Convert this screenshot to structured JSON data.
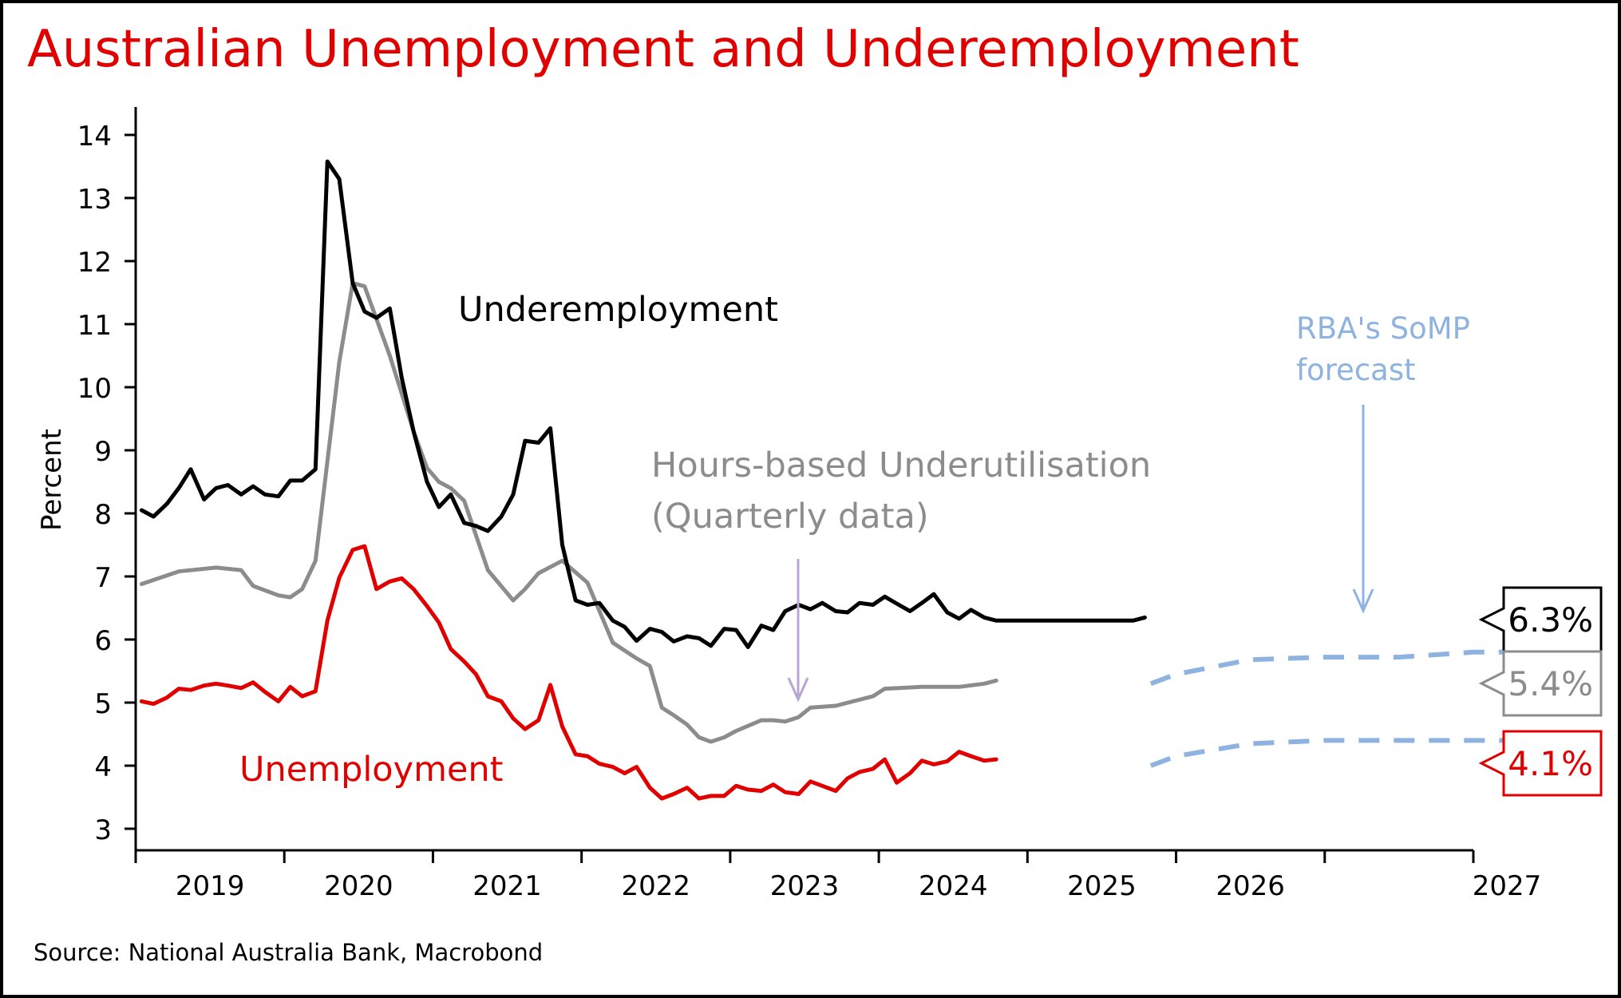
{
  "title": "Australian Unemployment and Underemployment",
  "source": "Source: National Australia Bank, Macrobond",
  "colors": {
    "title": "#e00000",
    "underemployment": "#000000",
    "underutilisation": "#8c8c8c",
    "unemployment": "#e00000",
    "forecast": "#8fb3e0"
  },
  "annotations": {
    "underemployment": "Underemployment",
    "underutilisation_line1": "Hours-based Underutilisation",
    "underutilisation_line2": "(Quarterly data)",
    "unemployment": "Unemployment",
    "forecast_line1": "RBA's SoMP",
    "forecast_line2": "forecast"
  },
  "chart_data": {
    "type": "line",
    "title": "Australian Unemployment and Underemployment",
    "ylabel": "Percent",
    "xlabel": "",
    "ylim": [
      3,
      14
    ],
    "xlim": [
      2018.0,
      2027.0
    ],
    "x_ticks": [
      "2019",
      "2020",
      "2021",
      "2022",
      "2023",
      "2024",
      "2025",
      "2026",
      "2027"
    ],
    "y_ticks": [
      3,
      4,
      5,
      6,
      7,
      8,
      9,
      10,
      11,
      12,
      13,
      14
    ],
    "grid": false,
    "series": [
      {
        "name": "Underemployment",
        "color": "#000000",
        "x": [
          2018.04,
          2018.12,
          2018.21,
          2018.29,
          2018.37,
          2018.46,
          2018.54,
          2018.62,
          2018.71,
          2018.79,
          2018.87,
          2018.96,
          2019.04,
          2019.12,
          2019.21,
          2019.29,
          2019.37,
          2019.46,
          2019.54,
          2019.62,
          2019.71,
          2019.79,
          2019.87,
          2019.96,
          2020.04,
          2020.12,
          2020.21,
          2020.29,
          2020.37,
          2020.46,
          2020.54,
          2020.62,
          2020.71,
          2020.79,
          2020.87,
          2020.96,
          2021.04,
          2021.12,
          2021.21,
          2021.29,
          2021.37,
          2021.46,
          2021.54,
          2021.62,
          2021.71,
          2021.79,
          2021.87,
          2021.96,
          2022.04,
          2022.12,
          2022.21,
          2022.29,
          2022.37,
          2022.46,
          2022.54,
          2022.62,
          2022.71,
          2022.79,
          2022.87,
          2022.96,
          2023.04,
          2023.12,
          2023.21,
          2023.29,
          2023.37,
          2023.46,
          2023.54,
          2023.62,
          2023.71,
          2023.79,
          2023.87,
          2023.96,
          2024.04,
          2024.12,
          2024.21,
          2024.29,
          2024.37,
          2024.46,
          2024.54,
          2024.62,
          2024.71,
          2024.79
        ],
        "values": [
          8.05,
          7.95,
          8.15,
          8.4,
          8.7,
          8.22,
          8.4,
          8.45,
          8.3,
          8.43,
          8.3,
          8.27,
          8.52,
          8.52,
          8.7,
          13.58,
          13.3,
          11.65,
          11.2,
          11.1,
          11.25,
          10.15,
          9.3,
          8.5,
          8.1,
          8.3,
          7.85,
          7.8,
          7.72,
          7.95,
          8.3,
          9.15,
          9.12,
          9.35,
          7.5,
          6.62,
          6.55,
          6.58,
          6.3,
          6.2,
          5.98,
          6.17,
          6.12,
          5.97,
          6.05,
          6.02,
          5.9,
          6.17,
          6.15,
          5.88,
          6.22,
          6.15,
          6.45,
          6.55,
          6.48,
          6.58,
          6.45,
          6.43,
          6.58,
          6.55,
          6.68,
          6.57,
          6.45,
          6.58,
          6.72,
          6.43,
          6.33,
          6.47,
          6.35,
          6.3,
          6.3,
          6.3,
          6.3,
          6.3,
          6.3,
          6.3,
          6.3,
          6.3,
          6.3,
          6.3,
          6.3,
          6.35
        ]
      },
      {
        "name": "Hours-based Underutilisation (Quarterly data)",
        "color": "#8c8c8c",
        "x": [
          2018.04,
          2018.29,
          2018.54,
          2018.71,
          2018.79,
          2018.96,
          2019.04,
          2019.12,
          2019.21,
          2019.37,
          2019.46,
          2019.54,
          2019.71,
          2019.87,
          2019.96,
          2020.04,
          2020.12,
          2020.21,
          2020.37,
          2020.54,
          2020.62,
          2020.71,
          2020.87,
          2021.04,
          2021.21,
          2021.37,
          2021.46,
          2021.54,
          2021.62,
          2021.71,
          2021.79,
          2021.87,
          2021.96,
          2022.04,
          2022.21,
          2022.29,
          2022.37,
          2022.46,
          2022.54,
          2022.71,
          2022.96,
          2023.04,
          2023.29,
          2023.54,
          2023.71,
          2023.79
        ],
        "values": [
          6.88,
          7.08,
          7.14,
          7.1,
          6.85,
          6.7,
          6.67,
          6.8,
          7.25,
          10.4,
          11.65,
          11.6,
          10.5,
          9.3,
          8.72,
          8.5,
          8.4,
          8.2,
          7.1,
          6.62,
          6.8,
          7.05,
          7.25,
          6.9,
          5.95,
          5.7,
          5.58,
          4.92,
          4.8,
          4.65,
          4.45,
          4.38,
          4.45,
          4.55,
          4.72,
          4.72,
          4.7,
          4.77,
          4.92,
          4.95,
          5.1,
          5.22,
          5.25,
          5.25,
          5.3,
          5.35
        ]
      },
      {
        "name": "Unemployment",
        "color": "#e00000",
        "x": [
          2018.04,
          2018.12,
          2018.21,
          2018.29,
          2018.37,
          2018.46,
          2018.54,
          2018.62,
          2018.71,
          2018.79,
          2018.87,
          2018.96,
          2019.04,
          2019.12,
          2019.21,
          2019.29,
          2019.37,
          2019.46,
          2019.54,
          2019.62,
          2019.71,
          2019.79,
          2019.87,
          2019.96,
          2020.04,
          2020.12,
          2020.21,
          2020.29,
          2020.37,
          2020.46,
          2020.54,
          2020.62,
          2020.71,
          2020.79,
          2020.87,
          2020.96,
          2021.04,
          2021.12,
          2021.21,
          2021.29,
          2021.37,
          2021.46,
          2021.54,
          2021.62,
          2021.71,
          2021.79,
          2021.87,
          2021.96,
          2022.04,
          2022.12,
          2022.21,
          2022.29,
          2022.37,
          2022.46,
          2022.54,
          2022.62,
          2022.71,
          2022.79,
          2022.87,
          2022.96,
          2023.04,
          2023.12,
          2023.21,
          2023.29,
          2023.37,
          2023.46,
          2023.54,
          2023.62,
          2023.71,
          2023.79
        ],
        "values": [
          5.02,
          4.98,
          5.08,
          5.22,
          5.2,
          5.27,
          5.3,
          5.27,
          5.23,
          5.32,
          5.17,
          5.02,
          5.25,
          5.1,
          5.18,
          6.3,
          6.98,
          7.42,
          7.48,
          6.8,
          6.92,
          6.97,
          6.8,
          6.53,
          6.27,
          5.85,
          5.65,
          5.45,
          5.1,
          5.02,
          4.75,
          4.58,
          4.72,
          5.28,
          4.62,
          4.18,
          4.15,
          4.03,
          3.98,
          3.88,
          3.98,
          3.65,
          3.48,
          3.55,
          3.65,
          3.48,
          3.52,
          3.52,
          3.68,
          3.62,
          3.6,
          3.7,
          3.58,
          3.55,
          3.75,
          3.68,
          3.6,
          3.8,
          3.9,
          3.95,
          4.1,
          3.73,
          3.88,
          4.08,
          4.02,
          4.07,
          4.22,
          4.15,
          4.08,
          4.1
        ]
      }
    ],
    "forecasts": [
      {
        "x": [
          2024.83,
          2025.0,
          2025.5,
          2026.0,
          2026.5,
          2027.0,
          2027.25
        ],
        "values": [
          5.3,
          5.45,
          5.68,
          5.72,
          5.72,
          5.8,
          5.8
        ]
      },
      {
        "x": [
          2024.83,
          2025.0,
          2025.5,
          2026.0,
          2026.5,
          2027.0,
          2027.25
        ],
        "values": [
          4.0,
          4.15,
          4.35,
          4.4,
          4.4,
          4.4,
          4.4
        ]
      }
    ],
    "end_labels": [
      {
        "text": "6.3%",
        "color": "#000000",
        "value": 6.3
      },
      {
        "text": "5.4%",
        "color": "#8c8c8c",
        "value": 5.4
      },
      {
        "text": "4.1%",
        "color": "#e00000",
        "value": 4.1
      }
    ]
  }
}
